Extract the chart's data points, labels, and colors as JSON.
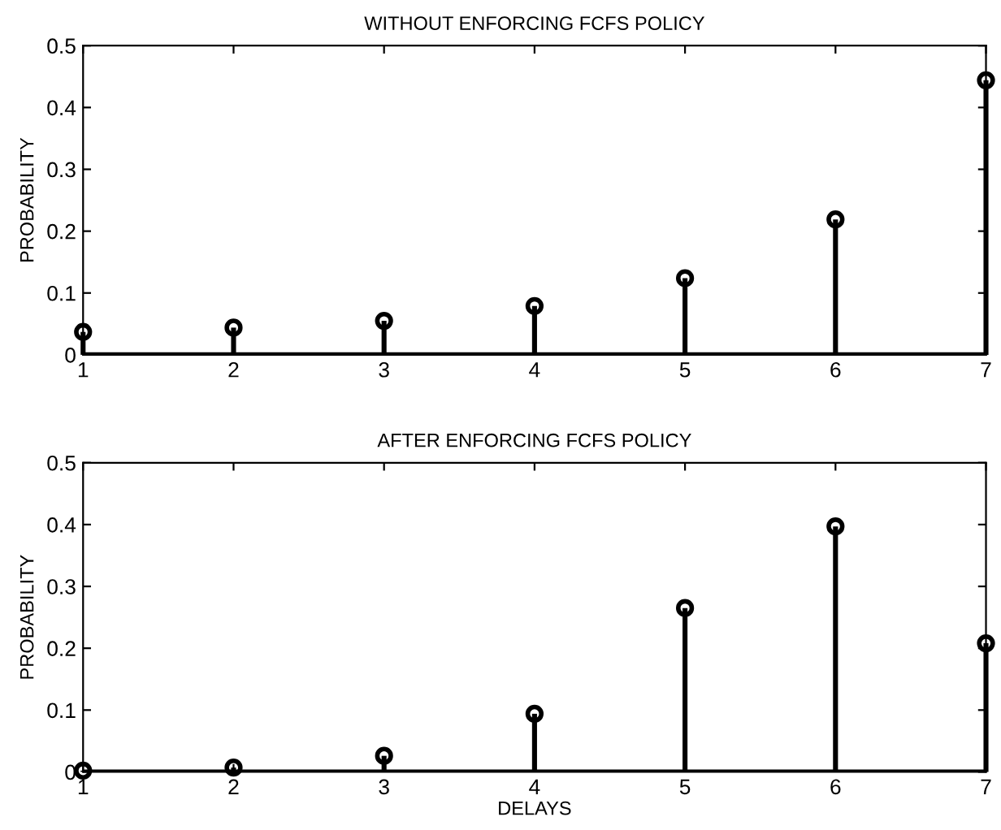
{
  "chart_data": [
    {
      "type": "lollipop",
      "title": "WITHOUT ENFORCING FCFS POLICY",
      "ylabel": "PROBABILITY",
      "x": [
        1,
        2,
        3,
        4,
        5,
        6,
        7
      ],
      "values": [
        0.037,
        0.044,
        0.055,
        0.079,
        0.124,
        0.219,
        0.444
      ],
      "color": "#000000",
      "xlim": [
        1,
        7
      ],
      "xticks": [
        1,
        2,
        3,
        4,
        5,
        6,
        7
      ],
      "ylim": [
        0,
        0.5
      ],
      "yticks": [
        0,
        0.1,
        0.2,
        0.3,
        0.4,
        0.5
      ],
      "marker": "circle"
    },
    {
      "type": "lollipop",
      "title": "AFTER ENFORCING FCFS POLICY",
      "xlabel": "DELAYS",
      "ylabel": "PROBABILITY",
      "x": [
        1,
        2,
        3,
        4,
        5,
        6,
        7
      ],
      "values": [
        0.002,
        0.007,
        0.026,
        0.094,
        0.265,
        0.397,
        0.208
      ],
      "color": "#000000",
      "xlim": [
        1,
        7
      ],
      "xticks": [
        1,
        2,
        3,
        4,
        5,
        6,
        7
      ],
      "ylim": [
        0,
        0.5
      ],
      "yticks": [
        0,
        0.1,
        0.2,
        0.3,
        0.4,
        0.5
      ],
      "marker": "circle"
    }
  ]
}
